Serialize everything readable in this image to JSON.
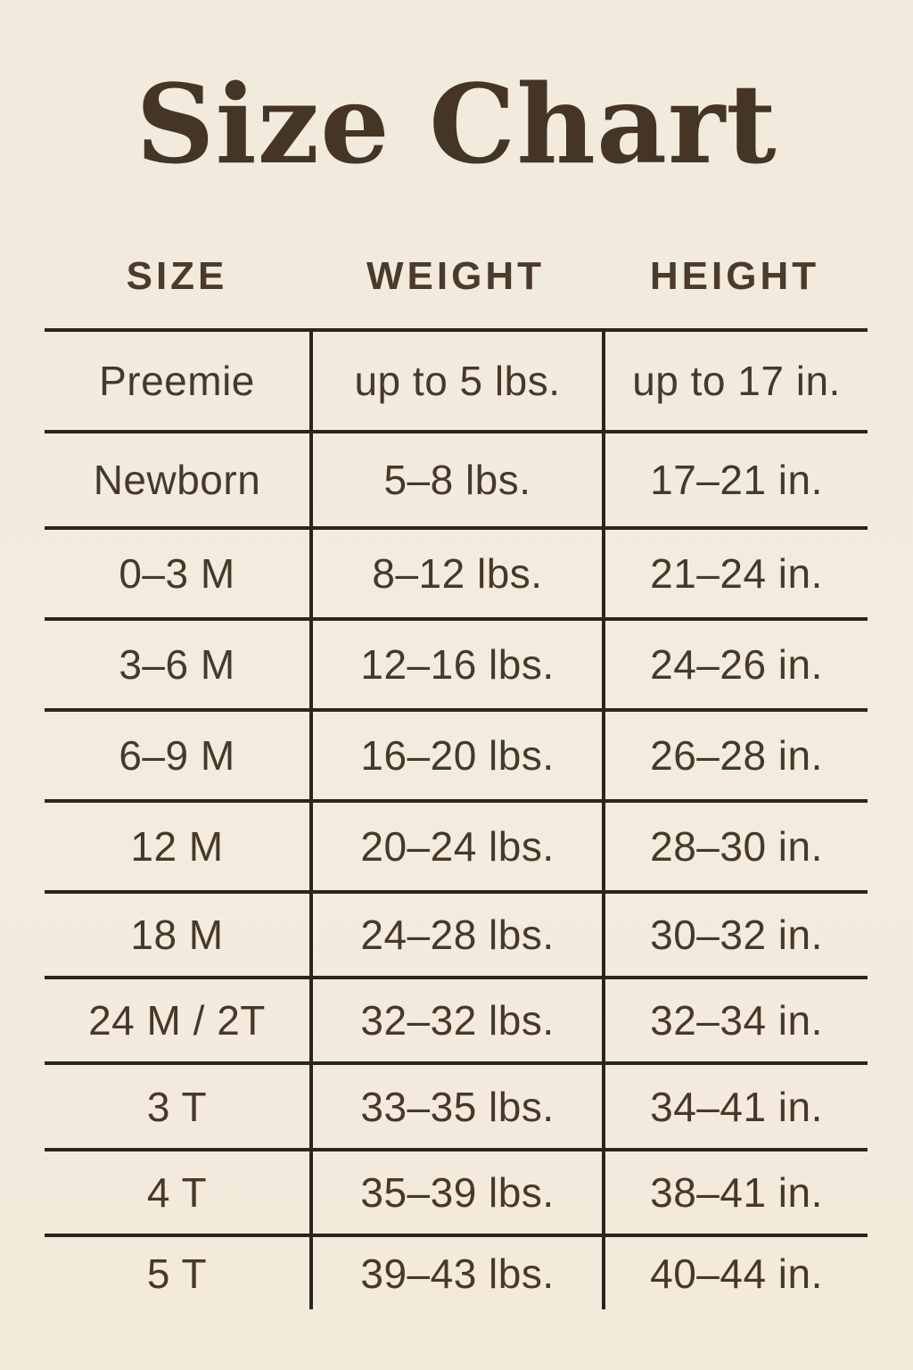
{
  "title": "Size Chart",
  "colors": {
    "background": "#f2eade",
    "title_text": "#443525",
    "header_text": "#4a3b2b",
    "cell_text": "#473929",
    "grid_lines": "#2f241a"
  },
  "chart_data": {
    "type": "table",
    "title": "Size Chart",
    "columns": [
      "SIZE",
      "WEIGHT",
      "HEIGHT"
    ],
    "rows": [
      {
        "size": "Preemie",
        "weight": "up to 5 lbs.",
        "height": "up to 17 in."
      },
      {
        "size": "Newborn",
        "weight": "5–8 lbs.",
        "height": "17–21 in."
      },
      {
        "size": "0–3 M",
        "weight": "8–12 lbs.",
        "height": "21–24 in."
      },
      {
        "size": "3–6 M",
        "weight": "12–16 lbs.",
        "height": "24–26 in."
      },
      {
        "size": "6–9 M",
        "weight": "16–20 lbs.",
        "height": "26–28 in."
      },
      {
        "size": "12 M",
        "weight": "20–24 lbs.",
        "height": "28–30 in."
      },
      {
        "size": "18 M",
        "weight": "24–28 lbs.",
        "height": "30–32 in."
      },
      {
        "size": "24 M / 2T",
        "weight": "32–32 lbs.",
        "height": "32–34 in."
      },
      {
        "size": "3 T",
        "weight": "33–35 lbs.",
        "height": "34–41 in."
      },
      {
        "size": "4 T",
        "weight": "35–39 lbs.",
        "height": "38–41 in."
      },
      {
        "size": "5 T",
        "weight": "39–43 lbs.",
        "height": "40–44 in."
      }
    ],
    "layout": {
      "grid": "horizontal rules between all rows, vertical rules between columns, no outer border, no rule below last row"
    }
  }
}
